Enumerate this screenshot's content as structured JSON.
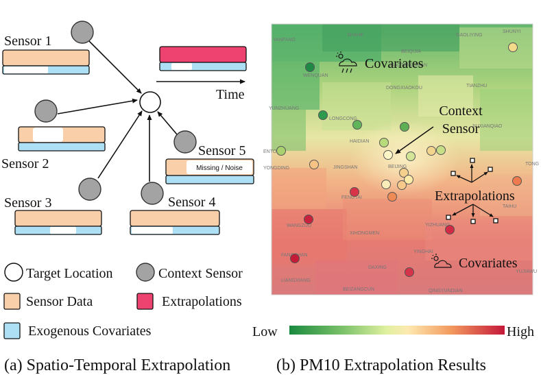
{
  "panel_a": {
    "sensor_labels": [
      "Sensor 1",
      "Sensor 2",
      "Sensor 3",
      "Sensor 4",
      "Sensor 5"
    ],
    "missing_noise": "Missing / Noise",
    "time_label": "Time",
    "legend": {
      "target": "Target Location",
      "context": "Context Sensor",
      "sensor_data": "Sensor Data",
      "extrapolations": "Extrapolations",
      "covariates": "Exogenous Covariates"
    },
    "caption": "(a) Spatio-Temporal Extrapolation"
  },
  "panel_b": {
    "covariates_top": "Covariates",
    "covariates_bottom": "Covariates",
    "context_line1": "Context",
    "context_line2": "Sensor",
    "extrapolations": "Extrapolations",
    "colorbar_low": "Low",
    "colorbar_high": "High",
    "caption": "(b) PM10 Extrapolation Results",
    "place_names": [
      "SHAHE",
      "GAOLIYING",
      "SHUNYI",
      "YANFANG",
      "BEIQIJIA",
      "XIAOTANGSHAN",
      "WENQUAN",
      "DONGXIAOKOU",
      "TIANZHU",
      "YUNZHUANG",
      "LONGCONG",
      "HAIDIAN",
      "JIUXIANQIAO",
      "ENTOU",
      "BEIJING",
      "YONGDING",
      "JINGSHAN",
      "TONG",
      "FENGTAI",
      "WANGZUO",
      "TAIHU",
      "XIHONGMEN",
      "YIZHUANG",
      "FANGSHAN",
      "YINGHAI",
      "DAXING",
      "LIANGXIANG",
      "YUJIAWU",
      "BEIZANGCUN",
      "QINGYUNDIAN"
    ]
  },
  "colors": {
    "sensor_data": "#f9cfaa",
    "covariate": "#aee0f5",
    "extrapolation": "#ee4270",
    "context_sensor": "#a3a3a3"
  }
}
